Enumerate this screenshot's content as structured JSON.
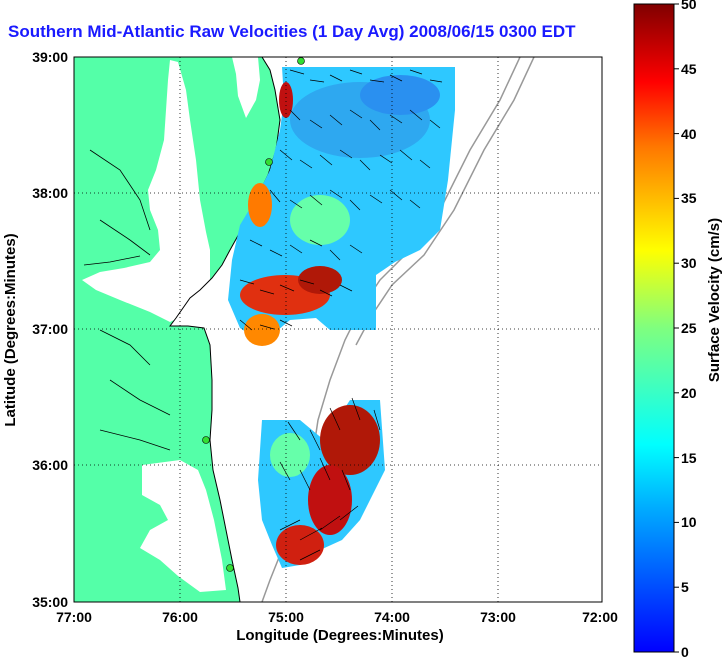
{
  "title": "Southern Mid-Atlantic Raw Velocities (1 Day Avg) 2008/06/15 0300 EDT",
  "x_axis": {
    "label": "Longitude (Degrees:Minutes)",
    "ticks": [
      "77:00",
      "76:00",
      "75:00",
      "74:00",
      "73:00",
      "72:00"
    ]
  },
  "y_axis": {
    "label": "Latitude (Degrees:Minutes)",
    "ticks": [
      "39:00",
      "38:00",
      "37:00",
      "36:00",
      "35:00"
    ]
  },
  "colorbar": {
    "label": "Surface Velocity (cm/s)",
    "min": 0,
    "max": 50,
    "ticks": [
      "50",
      "45",
      "40",
      "35",
      "30",
      "25",
      "20",
      "15",
      "10",
      "5",
      "0"
    ]
  },
  "colors": {
    "land": "#54ffa8",
    "title": "#1a1aff",
    "station": "#33dd33"
  }
}
